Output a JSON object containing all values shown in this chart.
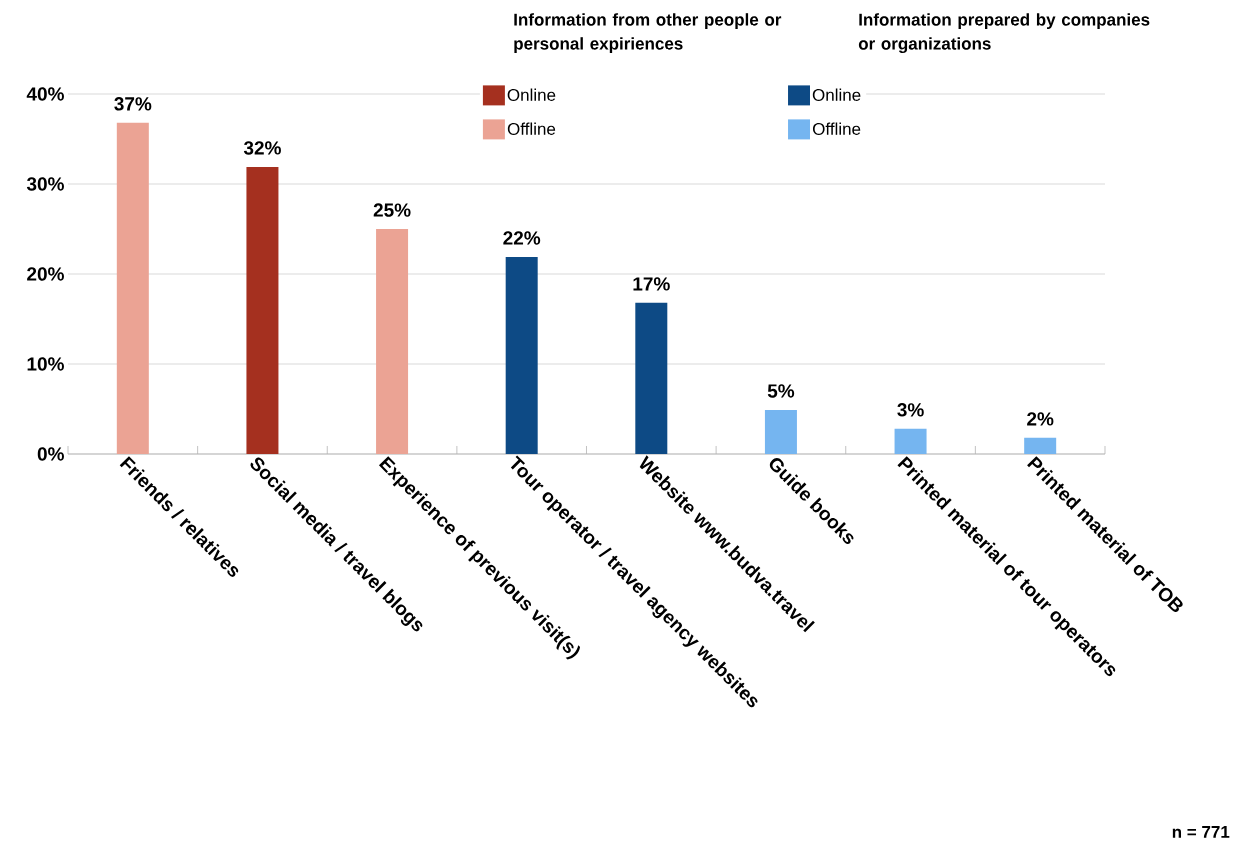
{
  "chart_data": {
    "type": "bar",
    "categories": [
      "Friends / relatives",
      "Social media / travel blogs",
      "Experience of previous visit(s)",
      "Tour operator / travel agency websites",
      "Website www.budva.travel",
      "Guide books",
      "Printed material of tour operators",
      "Printed material of TOB"
    ],
    "series": [
      {
        "name": "Online",
        "color": "#a5301f",
        "values": [
          null,
          31.9,
          null,
          null,
          null,
          null,
          null,
          null
        ],
        "value_labels": [
          null,
          "32%",
          null,
          null,
          null,
          null,
          null,
          null
        ]
      },
      {
        "name": "Offline",
        "color": "#eba394",
        "values": [
          36.8,
          null,
          25.0,
          null,
          null,
          null,
          null,
          null
        ],
        "value_labels": [
          "37%",
          null,
          "25%",
          null,
          null,
          null,
          null,
          null
        ]
      },
      {
        "name": "Online",
        "color": "#0d4a85",
        "values": [
          null,
          null,
          null,
          21.9,
          16.8,
          null,
          null,
          null
        ],
        "value_labels": [
          null,
          null,
          null,
          "22%",
          "17%",
          null,
          null,
          null
        ]
      },
      {
        "name": "Offline",
        "color": "#75b5f0",
        "values": [
          null,
          null,
          null,
          null,
          null,
          4.9,
          2.8,
          1.8
        ],
        "value_labels": [
          null,
          null,
          null,
          null,
          null,
          "5%",
          "3%",
          "2%"
        ]
      }
    ],
    "ylim": [
      0,
      40
    ],
    "yticks": [
      {
        "value": 0,
        "label": "0%"
      },
      {
        "value": 10,
        "label": "10%"
      },
      {
        "value": 20,
        "label": "20%"
      },
      {
        "value": 30,
        "label": "30%"
      },
      {
        "value": 40,
        "label": "40%"
      }
    ],
    "grid": "y",
    "legend": "top right",
    "annotations": [
      "Information from other people or personal expiriences",
      "Information prepared by companies or organizations",
      "n = 771"
    ]
  }
}
